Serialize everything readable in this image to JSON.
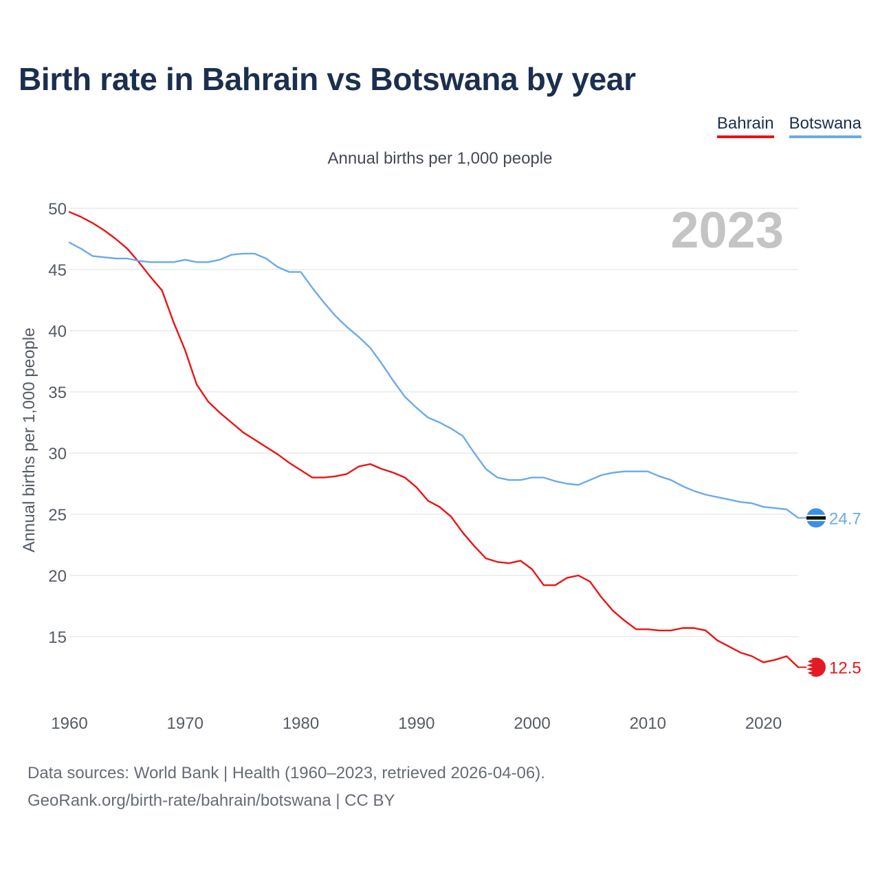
{
  "title": "Birth rate in Bahrain vs Botswana by year",
  "legend": [
    {
      "name": "Bahrain",
      "color": "#ee1111"
    },
    {
      "name": "Botswana",
      "color": "#6aaae9"
    }
  ],
  "subtitle": "Annual births per 1,000 people",
  "year_watermark": "2023",
  "footer": {
    "line1": "Data sources: World Bank | Health (1960–2023, retrieved 2026-04-06).",
    "line2": "GeoRank.org/birth-rate/bahrain/botswana | CC BY"
  },
  "chart_data": {
    "type": "line",
    "title": "Birth rate in Bahrain vs Botswana by year",
    "xlabel": "",
    "ylabel": "Annual births per 1,000 people",
    "xlim": [
      1960,
      2023
    ],
    "ylim": [
      10,
      50
    ],
    "yticks": [
      15,
      20,
      25,
      30,
      35,
      40,
      45,
      50
    ],
    "xticks": [
      1960,
      1970,
      1980,
      1990,
      2000,
      2010,
      2020
    ],
    "x": [
      1960,
      1961,
      1962,
      1963,
      1964,
      1965,
      1966,
      1967,
      1968,
      1969,
      1970,
      1971,
      1972,
      1973,
      1974,
      1975,
      1976,
      1977,
      1978,
      1979,
      1980,
      1981,
      1982,
      1983,
      1984,
      1985,
      1986,
      1987,
      1988,
      1989,
      1990,
      1991,
      1992,
      1993,
      1994,
      1995,
      1996,
      1997,
      1998,
      1999,
      2000,
      2001,
      2002,
      2003,
      2004,
      2005,
      2006,
      2007,
      2008,
      2009,
      2010,
      2011,
      2012,
      2013,
      2014,
      2015,
      2016,
      2017,
      2018,
      2019,
      2020,
      2021,
      2022,
      2023
    ],
    "series": [
      {
        "name": "Bahrain",
        "color": "#ee1111",
        "final_label": "12.5",
        "values": [
          49.7,
          49.3,
          48.8,
          48.2,
          47.5,
          46.7,
          45.6,
          44.4,
          43.3,
          40.7,
          38.4,
          35.6,
          34.2,
          33.3,
          32.5,
          31.7,
          31.1,
          30.5,
          29.9,
          29.2,
          28.6,
          28.0,
          28.0,
          28.1,
          28.3,
          28.9,
          29.1,
          28.7,
          28.4,
          28.0,
          27.2,
          26.1,
          25.6,
          24.8,
          23.5,
          22.4,
          21.4,
          21.1,
          21.0,
          21.2,
          20.5,
          19.2,
          19.2,
          19.8,
          20.0,
          19.5,
          18.2,
          17.1,
          16.3,
          15.6,
          15.6,
          15.5,
          15.5,
          15.7,
          15.7,
          15.5,
          14.7,
          14.2,
          13.7,
          13.4,
          12.9,
          13.1,
          13.4,
          12.5
        ]
      },
      {
        "name": "Botswana",
        "color": "#6aaae9",
        "final_label": "24.7",
        "values": [
          47.2,
          46.7,
          46.1,
          46.0,
          45.9,
          45.9,
          45.7,
          45.6,
          45.6,
          45.6,
          45.8,
          45.6,
          45.6,
          45.8,
          46.2,
          46.3,
          46.3,
          45.9,
          45.2,
          44.8,
          44.8,
          43.5,
          42.3,
          41.2,
          40.3,
          39.5,
          38.6,
          37.3,
          35.9,
          34.6,
          33.7,
          32.9,
          32.5,
          32.0,
          31.4,
          30.0,
          28.7,
          28.0,
          27.8,
          27.8,
          28.0,
          28.0,
          27.7,
          27.5,
          27.4,
          27.8,
          28.2,
          28.4,
          28.5,
          28.5,
          28.5,
          28.1,
          27.8,
          27.3,
          26.9,
          26.6,
          26.4,
          26.2,
          26.0,
          25.9,
          25.6,
          25.5,
          25.4,
          24.7
        ]
      }
    ]
  }
}
